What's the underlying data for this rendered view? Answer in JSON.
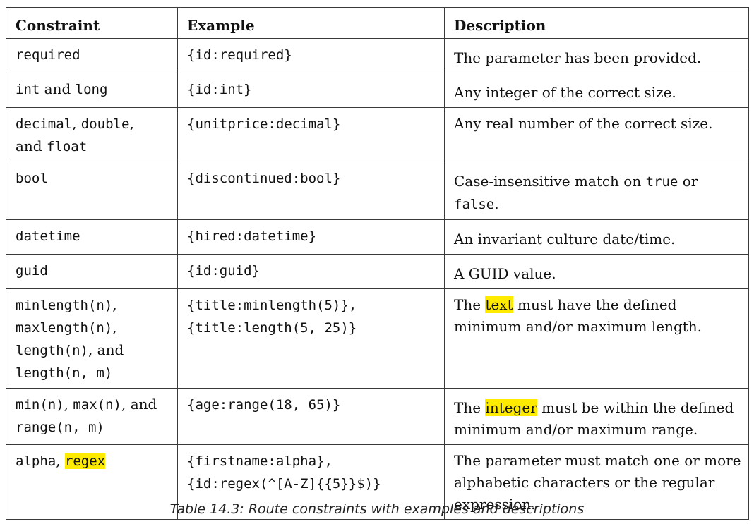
{
  "table": {
    "headers": [
      "Constraint",
      "Example",
      "Description"
    ],
    "rows": [
      {
        "constraint": [
          {
            "t": "required",
            "code": true
          }
        ],
        "example": [
          {
            "t": "{id:required}",
            "code": true
          }
        ],
        "description": [
          {
            "t": "The parameter has been provided."
          }
        ]
      },
      {
        "constraint": [
          {
            "t": "int",
            "code": true
          },
          {
            "t": " and "
          },
          {
            "t": "long",
            "code": true
          }
        ],
        "example": [
          {
            "t": "{id:int}",
            "code": true
          }
        ],
        "description": [
          {
            "t": "Any integer of the correct size."
          }
        ]
      },
      {
        "constraint": [
          {
            "t": "decimal",
            "code": true
          },
          {
            "t": ", "
          },
          {
            "t": "double",
            "code": true
          },
          {
            "t": ","
          },
          {
            "br": true
          },
          {
            "t": "and "
          },
          {
            "t": "float",
            "code": true
          }
        ],
        "example": [
          {
            "t": "{unitprice:decimal}",
            "code": true
          }
        ],
        "description": [
          {
            "t": "Any real number of the correct size."
          }
        ]
      },
      {
        "constraint": [
          {
            "t": "bool",
            "code": true
          }
        ],
        "example": [
          {
            "t": "{discontinued:bool}",
            "code": true
          }
        ],
        "description": [
          {
            "t": "Case-insensitive match on "
          },
          {
            "t": "true",
            "code": true
          },
          {
            "t": " or"
          },
          {
            "br": true
          },
          {
            "t": "false",
            "code": true
          },
          {
            "t": "."
          }
        ]
      },
      {
        "constraint": [
          {
            "t": "datetime",
            "code": true
          }
        ],
        "example": [
          {
            "t": "{hired:datetime}",
            "code": true
          }
        ],
        "description": [
          {
            "t": "An invariant culture date/time."
          }
        ]
      },
      {
        "constraint": [
          {
            "t": "guid",
            "code": true
          }
        ],
        "example": [
          {
            "t": "{id:guid}",
            "code": true
          }
        ],
        "description": [
          {
            "t": "A GUID value."
          }
        ]
      },
      {
        "constraint": [
          {
            "t": "minlength(n)",
            "code": true
          },
          {
            "t": ","
          },
          {
            "br": true
          },
          {
            "t": "maxlength(n)",
            "code": true
          },
          {
            "t": ","
          },
          {
            "br": true
          },
          {
            "t": "length(n)",
            "code": true
          },
          {
            "t": ", and"
          },
          {
            "br": true
          },
          {
            "t": "length(n, m)",
            "code": true
          }
        ],
        "example": [
          {
            "t": "{title:minlength(5)},",
            "code": true
          },
          {
            "br": true
          },
          {
            "t": "{title:length(5, 25)}",
            "code": true
          }
        ],
        "description": [
          {
            "t": "The "
          },
          {
            "t": "text",
            "hl": true
          },
          {
            "t": " must have the defined"
          },
          {
            "br": true
          },
          {
            "t": "minimum and/or maximum length."
          }
        ]
      },
      {
        "constraint": [
          {
            "t": "min(n)",
            "code": true
          },
          {
            "t": ", "
          },
          {
            "t": "max(n)",
            "code": true
          },
          {
            "t": ", and"
          },
          {
            "br": true
          },
          {
            "t": "range(n, m)",
            "code": true
          }
        ],
        "example": [
          {
            "t": "{age:range(18, 65)}",
            "code": true
          }
        ],
        "description": [
          {
            "t": "The "
          },
          {
            "t": "integer",
            "hl": true
          },
          {
            "t": " must be within the defined"
          },
          {
            "br": true
          },
          {
            "t": "minimum and/or maximum range."
          }
        ]
      },
      {
        "constraint": [
          {
            "t": "alpha",
            "code": true
          },
          {
            "t": ", "
          },
          {
            "t": "regex",
            "code": true,
            "hl": true
          }
        ],
        "example": [
          {
            "t": "{firstname:alpha},",
            "code": true
          },
          {
            "br": true
          },
          {
            "t": "{id:regex(^[A-Z]{{5}}$)}",
            "code": true
          }
        ],
        "description": [
          {
            "t": "The parameter must match one or more"
          },
          {
            "br": true
          },
          {
            "t": "alphabetic characters or the regular"
          },
          {
            "br": true
          },
          {
            "t": "expression."
          }
        ]
      }
    ]
  },
  "caption": "Table 14.3: Route constraints with examples and descriptions",
  "colors": {
    "highlight": "#ffeb00",
    "border": "#3a3a3a"
  }
}
